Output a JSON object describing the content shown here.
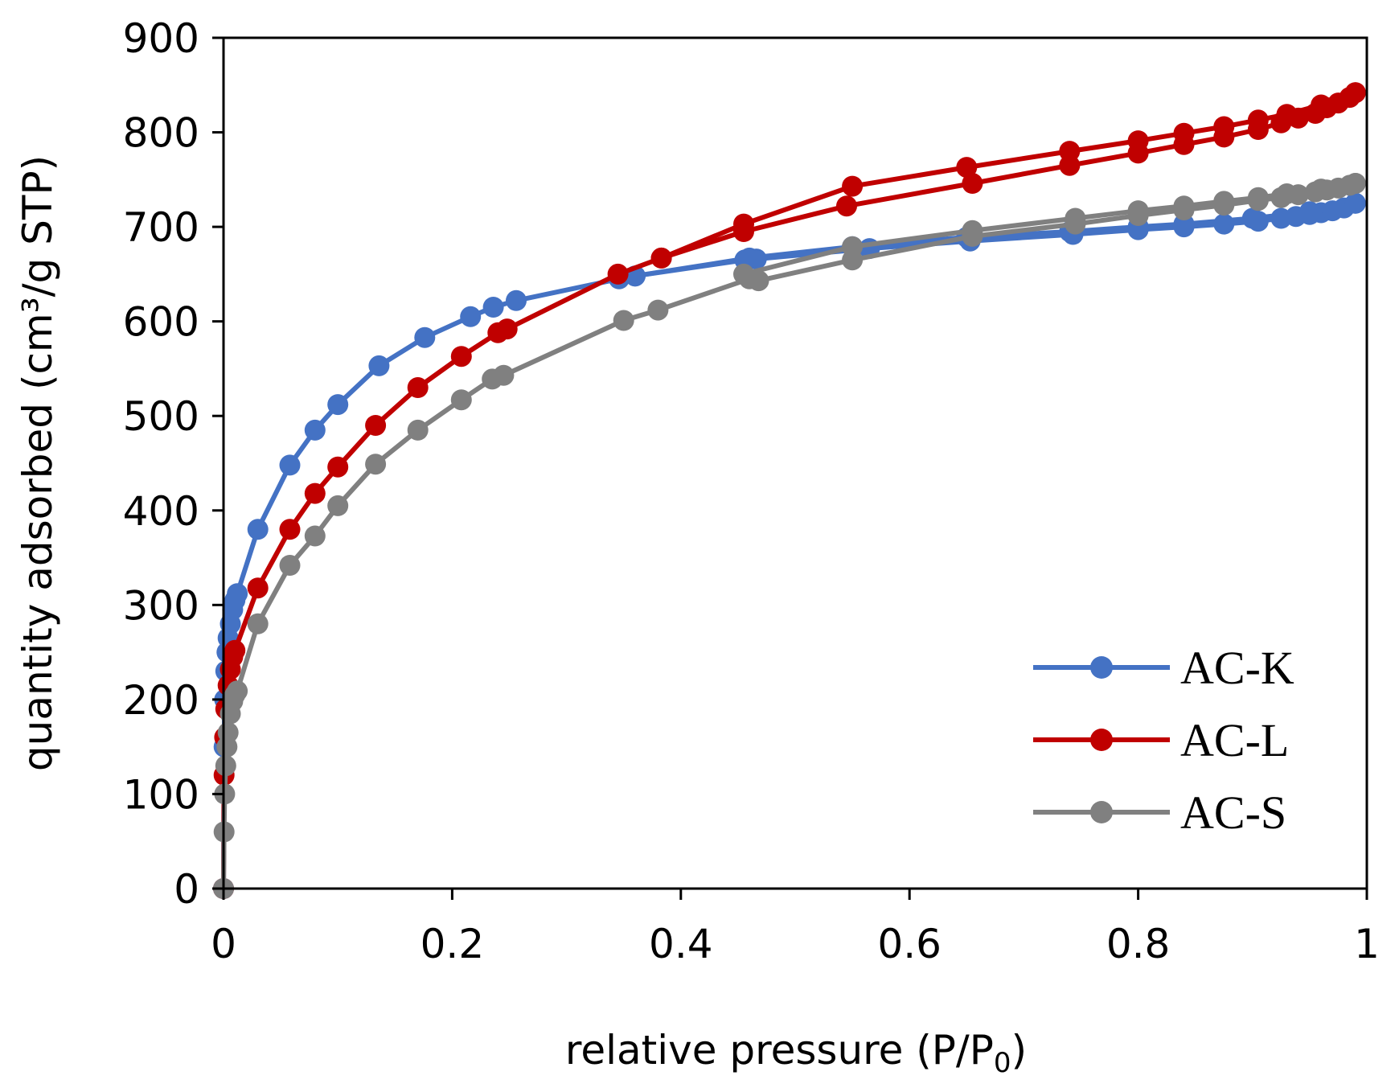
{
  "chart_data": {
    "type": "line",
    "xlabel": "relative pressure (P/P",
    "xlabel_sub": "0",
    "xlabel_end": ")",
    "ylabel": "quantity adsorbed (cm³/g STP)",
    "xlim": [
      0,
      1
    ],
    "ylim": [
      0,
      900
    ],
    "xticks": [
      0,
      0.2,
      0.4,
      0.6,
      0.8,
      1
    ],
    "xtick_labels": [
      "0",
      "0.2",
      "0.4",
      "0.6",
      "0.8",
      "1"
    ],
    "yticks": [
      0,
      100,
      200,
      300,
      400,
      500,
      600,
      700,
      800,
      900
    ],
    "ytick_labels": [
      "0",
      "100",
      "200",
      "300",
      "400",
      "500",
      "600",
      "700",
      "800",
      "900"
    ],
    "legend_position": "bottom-right",
    "series": [
      {
        "name": "AC-K",
        "color": "#4472c4",
        "adsorption": [
          [
            0.0,
            0
          ],
          [
            0.0005,
            150
          ],
          [
            0.001,
            200
          ],
          [
            0.002,
            230
          ],
          [
            0.003,
            250
          ],
          [
            0.004,
            265
          ],
          [
            0.006,
            280
          ],
          [
            0.008,
            295
          ],
          [
            0.01,
            305
          ],
          [
            0.012,
            312
          ],
          [
            0.03,
            380
          ],
          [
            0.058,
            448
          ],
          [
            0.08,
            485
          ],
          [
            0.1,
            512
          ],
          [
            0.136,
            553
          ],
          [
            0.176,
            583
          ],
          [
            0.216,
            605
          ],
          [
            0.236,
            615
          ],
          [
            0.256,
            622
          ],
          [
            0.346,
            645
          ],
          [
            0.36,
            648
          ],
          [
            0.456,
            665
          ],
          [
            0.466,
            666
          ],
          [
            0.565,
            677
          ],
          [
            0.653,
            685
          ],
          [
            0.743,
            692
          ],
          [
            0.8,
            697
          ],
          [
            0.84,
            700
          ],
          [
            0.875,
            703
          ],
          [
            0.905,
            706
          ],
          [
            0.925,
            709
          ],
          [
            0.938,
            711
          ],
          [
            0.95,
            713
          ],
          [
            0.96,
            715
          ],
          [
            0.97,
            717
          ],
          [
            0.98,
            720
          ],
          [
            0.99,
            725
          ]
        ],
        "desorption": [
          [
            0.99,
            725
          ],
          [
            0.95,
            716
          ],
          [
            0.9,
            709
          ],
          [
            0.84,
            703
          ],
          [
            0.8,
            700
          ],
          [
            0.74,
            695
          ],
          [
            0.65,
            689
          ],
          [
            0.55,
            679
          ],
          [
            0.46,
            667
          ],
          [
            0.36,
            648
          ]
        ]
      },
      {
        "name": "AC-L",
        "color": "#c00000",
        "adsorption": [
          [
            0.0,
            0
          ],
          [
            0.0005,
            120
          ],
          [
            0.001,
            160
          ],
          [
            0.002,
            190
          ],
          [
            0.004,
            215
          ],
          [
            0.006,
            232
          ],
          [
            0.008,
            245
          ],
          [
            0.01,
            252
          ],
          [
            0.03,
            318
          ],
          [
            0.058,
            380
          ],
          [
            0.08,
            418
          ],
          [
            0.1,
            446
          ],
          [
            0.133,
            490
          ],
          [
            0.17,
            530
          ],
          [
            0.208,
            563
          ],
          [
            0.24,
            588
          ],
          [
            0.248,
            592
          ],
          [
            0.345,
            650
          ],
          [
            0.383,
            667
          ],
          [
            0.455,
            695
          ],
          [
            0.545,
            722
          ],
          [
            0.655,
            746
          ],
          [
            0.74,
            765
          ],
          [
            0.8,
            778
          ],
          [
            0.84,
            787
          ],
          [
            0.875,
            795
          ],
          [
            0.905,
            803
          ],
          [
            0.925,
            810
          ],
          [
            0.94,
            815
          ],
          [
            0.955,
            820
          ],
          [
            0.965,
            826
          ],
          [
            0.975,
            831
          ],
          [
            0.985,
            837
          ],
          [
            0.99,
            842
          ]
        ],
        "desorption": [
          [
            0.99,
            842
          ],
          [
            0.96,
            829
          ],
          [
            0.93,
            819
          ],
          [
            0.905,
            813
          ],
          [
            0.875,
            806
          ],
          [
            0.84,
            799
          ],
          [
            0.8,
            791
          ],
          [
            0.74,
            780
          ],
          [
            0.65,
            763
          ],
          [
            0.55,
            743
          ],
          [
            0.455,
            703
          ],
          [
            0.383,
            667
          ]
        ]
      },
      {
        "name": "AC-S",
        "color": "#808080",
        "adsorption": [
          [
            0.0,
            0
          ],
          [
            0.0005,
            60
          ],
          [
            0.001,
            100
          ],
          [
            0.002,
            130
          ],
          [
            0.003,
            150
          ],
          [
            0.004,
            165
          ],
          [
            0.006,
            185
          ],
          [
            0.008,
            198
          ],
          [
            0.01,
            205
          ],
          [
            0.012,
            209
          ],
          [
            0.03,
            280
          ],
          [
            0.058,
            342
          ],
          [
            0.08,
            373
          ],
          [
            0.1,
            405
          ],
          [
            0.133,
            449
          ],
          [
            0.17,
            485
          ],
          [
            0.208,
            517
          ],
          [
            0.235,
            539
          ],
          [
            0.245,
            543
          ],
          [
            0.35,
            601
          ],
          [
            0.38,
            612
          ],
          [
            0.46,
            645
          ],
          [
            0.468,
            643
          ],
          [
            0.55,
            665
          ],
          [
            0.655,
            690
          ],
          [
            0.745,
            703
          ],
          [
            0.8,
            712
          ],
          [
            0.84,
            718
          ],
          [
            0.875,
            723
          ],
          [
            0.905,
            728
          ],
          [
            0.925,
            731
          ],
          [
            0.94,
            734
          ],
          [
            0.955,
            737
          ],
          [
            0.965,
            739
          ],
          [
            0.975,
            741
          ],
          [
            0.985,
            744
          ],
          [
            0.99,
            746
          ]
        ],
        "desorption": [
          [
            0.99,
            746
          ],
          [
            0.96,
            740
          ],
          [
            0.93,
            735
          ],
          [
            0.905,
            731
          ],
          [
            0.875,
            727
          ],
          [
            0.84,
            722
          ],
          [
            0.8,
            717
          ],
          [
            0.745,
            709
          ],
          [
            0.655,
            696
          ],
          [
            0.55,
            679
          ],
          [
            0.455,
            650
          ]
        ]
      }
    ]
  }
}
